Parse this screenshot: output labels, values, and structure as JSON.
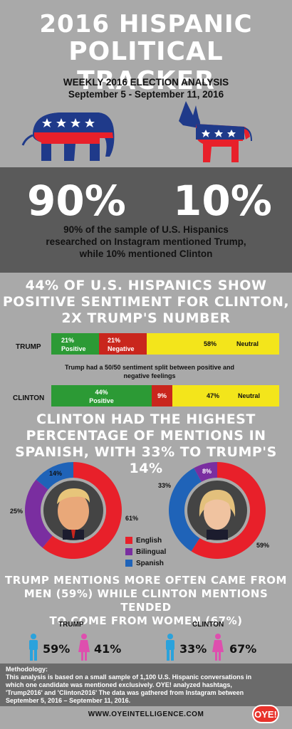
{
  "header": {
    "title_line1": "2016 HISPANIC",
    "title_line2": "POLITICAL TRACKER",
    "subtitle_line1": "WEEKLY 2016 ELECTION ANALYSIS",
    "subtitle_line2": "September 5 - September 11, 2016"
  },
  "mentions": {
    "trump_pct": "90%",
    "clinton_pct": "10%",
    "text_line1": "90% of the sample of U.S. Hispanics",
    "text_line2": "researched on Instagram mentioned Trump,",
    "text_line3": "while 10% mentioned Clinton"
  },
  "sentiment": {
    "heading_line1": "44% OF U.S. HISPANICS SHOW",
    "heading_line2": "POSITIVE SENTIMENT FOR CLINTON,",
    "heading_line3": "2X TRUMP'S NUMBER",
    "trump_label": "TRUMP",
    "clinton_label": "CLINTON",
    "trump_positive": "21%",
    "trump_positive_label": "Positive",
    "trump_negative": "21%",
    "trump_negative_label": "Negative",
    "trump_neutral": "58%",
    "trump_neutral_label": "Neutral",
    "note_line1": "Trump had a 50/50 sentiment split between positive and",
    "note_line2": "negative feelings",
    "clinton_positive": "44%",
    "clinton_positive_label": "Positive",
    "clinton_negative": "9%",
    "clinton_neutral": "47%",
    "clinton_neutral_label": "Neutral"
  },
  "language": {
    "heading_line1": "CLINTON HAD THE HIGHEST",
    "heading_line2": "PERCENTAGE OF MENTIONS IN",
    "heading_line3": "SPANISH, WITH 33% TO TRUMP'S 14%",
    "trump_spanish": "14%",
    "trump_bilingual": "25%",
    "trump_english": "61%",
    "clinton_spanish": "33%",
    "clinton_bilingual": "8%",
    "clinton_english": "59%",
    "legend_english": "English",
    "legend_bilingual": "Bilingual",
    "legend_spanish": "Spanish"
  },
  "gender": {
    "heading_line1": "TRUMP MENTIONS MORE OFTEN CAME FROM",
    "heading_line2": "MEN (59%) WHILE CLINTON MENTIONS TENDED",
    "heading_line3": "TO COME FROM WOMEN (67%)",
    "trump_label": "TRUMP",
    "clinton_label": "CLINTON",
    "trump_men": "59%",
    "trump_women": "41%",
    "clinton_men": "33%",
    "clinton_women": "67%"
  },
  "methodology": {
    "label": "Methodology:",
    "line1": "This analysis is based on a small sample of  1,100 U.S. Hispanic conversations in",
    "line2": "which one candidate was mentioned exclusively. OYE! analyzed hashtags,",
    "line3": "'Trump2016' and 'Clinton2016' The data was gathered from Instagram between",
    "line4": "September 5, 2016 – September 11, 2016."
  },
  "footer": {
    "url": "WWW.OYEINTELLIGENCE.COM",
    "logo": "OYE!"
  },
  "chart_data": [
    {
      "type": "bar",
      "categories": [
        "TRUMP",
        "CLINTON"
      ],
      "series": [
        {
          "name": "Positive",
          "values": [
            21,
            44
          ]
        },
        {
          "name": "Negative",
          "values": [
            21,
            9
          ]
        },
        {
          "name": "Neutral",
          "values": [
            58,
            47
          ]
        }
      ]
    },
    {
      "type": "pie",
      "series_name": "Trump",
      "categories": [
        "English",
        "Bilingual",
        "Spanish"
      ],
      "values": [
        61,
        25,
        14
      ]
    },
    {
      "type": "pie",
      "series_name": "Clinton",
      "categories": [
        "English",
        "Bilingual",
        "Spanish"
      ],
      "values": [
        59,
        8,
        33
      ]
    }
  ],
  "colors": {
    "red": "#e8202a",
    "blue": "#1f63b8",
    "purple": "#7a2ea0",
    "green": "#2c9a35",
    "dark_red": "#c9261d",
    "yellow": "#f3e51b",
    "men": "#2aa2dc",
    "women": "#de4fae"
  }
}
